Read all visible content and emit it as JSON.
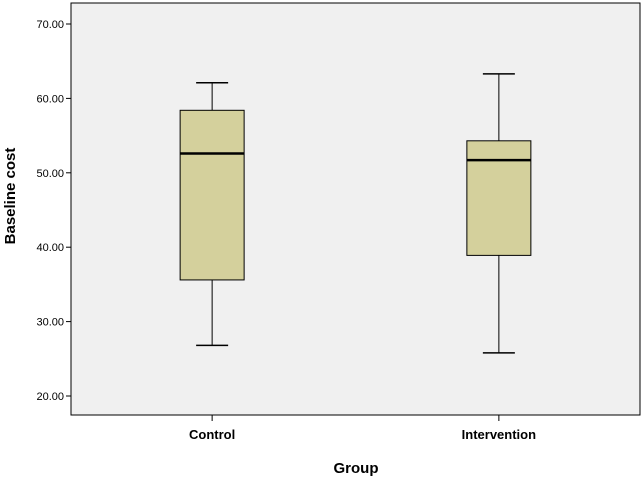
{
  "chart_data": {
    "type": "boxplot",
    "xlabel": "Group",
    "ylabel": "Baseline cost",
    "ylim": [
      20,
      70
    ],
    "yticks": [
      "20.00",
      "30.00",
      "40.00",
      "50.00",
      "60.00",
      "70.00"
    ],
    "grid": false,
    "categories": [
      "Control",
      "Intervention"
    ],
    "boxes": [
      {
        "min": 26.8,
        "q1": 35.6,
        "median": 52.6,
        "q3": 58.4,
        "max": 62.1
      },
      {
        "min": 25.8,
        "q1": 38.9,
        "median": 51.7,
        "q3": 54.3,
        "max": 63.3
      }
    ],
    "colors": {
      "box_fill": "#d4d09c",
      "plot_bg": "#f0f0f0",
      "stroke": "#000000"
    }
  }
}
